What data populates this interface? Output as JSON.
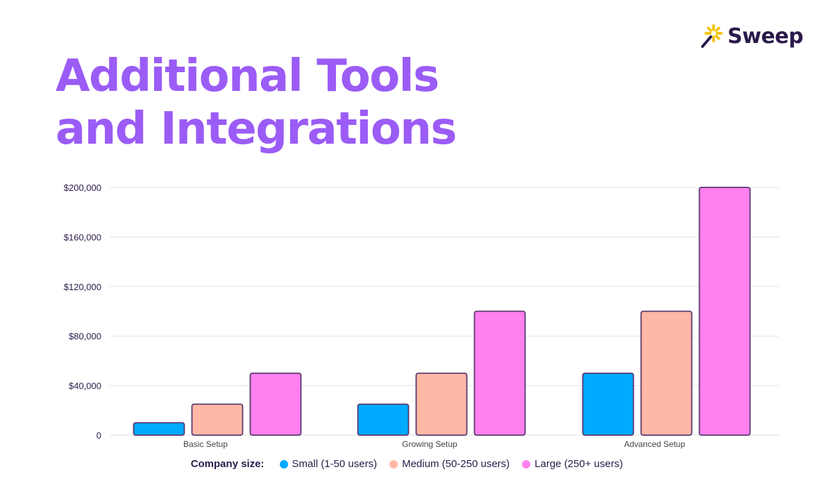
{
  "title": {
    "line1": "Additional Tools",
    "line2": "and Integrations"
  },
  "logo": {
    "text": "Sweep",
    "icon": "sparkle-wand-icon"
  },
  "colors": {
    "title": "#9b5cf6",
    "text": "#2b1a4a",
    "small": "#00aaff",
    "medium": "#ffb8a6",
    "large": "#ff80ee",
    "bar_stroke": "#5a3a6e",
    "grid": "#e2e2e6",
    "logo_star": "#f5c518"
  },
  "legend": {
    "title": "Company size:"
  },
  "chart_data": {
    "type": "bar",
    "categories": [
      "Basic Setup",
      "Growing Setup",
      "Advanced Setup"
    ],
    "series": [
      {
        "name": "Small (1-50 users)",
        "values": [
          10000,
          25000,
          50000
        ]
      },
      {
        "name": "Medium (50-250 users)",
        "values": [
          25000,
          50000,
          100000
        ]
      },
      {
        "name": "Large (250+ users)",
        "values": [
          50000,
          100000,
          200000
        ]
      }
    ],
    "yticks": [
      0,
      40000,
      80000,
      120000,
      160000,
      200000
    ],
    "ytick_labels": [
      "0",
      "$40,000",
      "$80,000",
      "$120,000",
      "$160,000",
      "$200,000"
    ],
    "ylim": [
      0,
      200000
    ],
    "grid": true,
    "legend_position": "bottom"
  }
}
